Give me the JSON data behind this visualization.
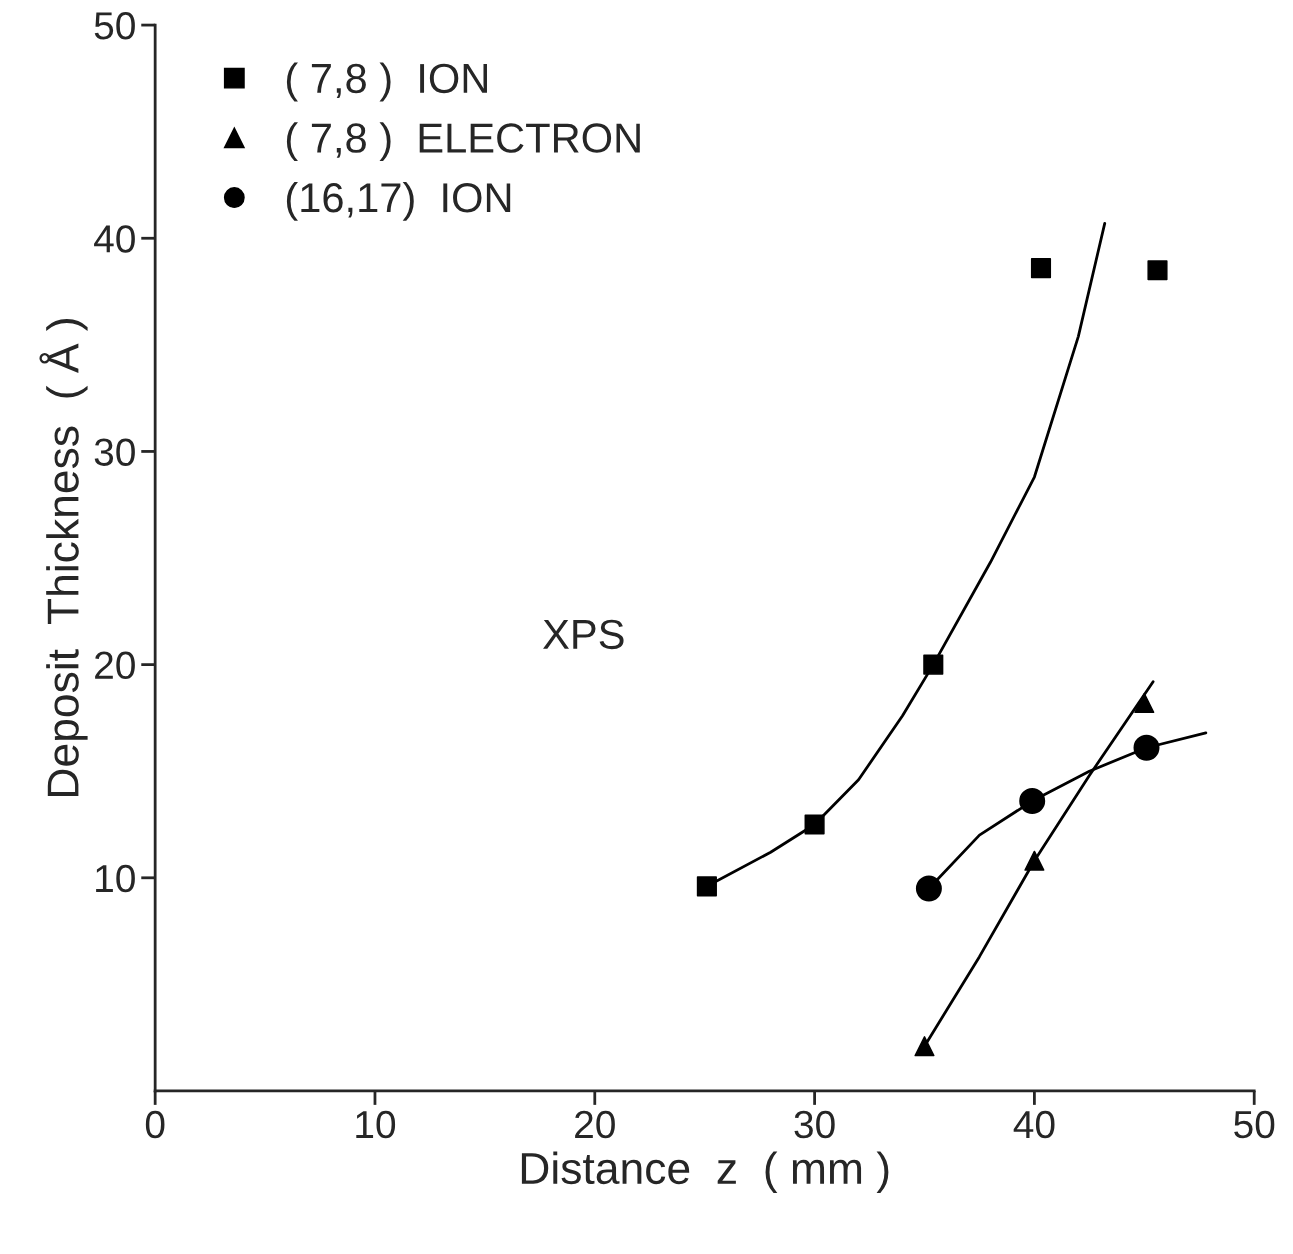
{
  "chart_data": {
    "type": "scatter",
    "xlabel": "Distance  z  ( mm )",
    "ylabel": "Deposit  Thickness  ( Å )",
    "xlim": [
      0,
      50
    ],
    "ylim": [
      0,
      50
    ],
    "xticks": [
      0,
      10,
      20,
      30,
      40,
      50
    ],
    "yticks": [
      10,
      20,
      30,
      40,
      50
    ],
    "legend": "top left",
    "annotations": [
      "XPS"
    ],
    "series": [
      {
        "name": "( 7,8 )  ION",
        "marker": "square",
        "color": "#000000",
        "x": [
          25.1,
          30.0,
          35.4,
          40.3,
          45.6
        ],
        "values": [
          9.6,
          12.5,
          20.0,
          38.6,
          38.5
        ]
      },
      {
        "name": "( 7,8 )  ELECTRON",
        "marker": "triangle",
        "color": "#000000",
        "x": [
          35.0,
          40.0,
          45.0
        ],
        "values": [
          2.1,
          10.8,
          18.2
        ]
      },
      {
        "name": "(16,17)  ION",
        "marker": "circle",
        "color": "#000000",
        "x": [
          35.2,
          39.9,
          45.1
        ],
        "values": [
          9.5,
          13.6,
          16.1
        ]
      },
      {
        "type": "line",
        "marker": "none",
        "line_style": "solid",
        "color": "#000000",
        "x": [
          25.1,
          28,
          30,
          32,
          34,
          35.4,
          38,
          40,
          42,
          43.2
        ],
        "values": [
          9.6,
          11.2,
          12.5,
          14.6,
          17.6,
          20.0,
          24.8,
          28.8,
          35.4,
          40.7
        ]
      },
      {
        "type": "line",
        "marker": "none",
        "line_style": "solid",
        "color": "#000000",
        "x": [
          35.0,
          37.5,
          40.0,
          42.5,
          45.4
        ],
        "values": [
          2.1,
          6.3,
          10.8,
          14.8,
          19.2
        ]
      },
      {
        "type": "line",
        "marker": "none",
        "line_style": "solid",
        "color": "#000000",
        "x": [
          35.2,
          37.5,
          39.9,
          42.5,
          45.1,
          47.8
        ],
        "values": [
          9.5,
          12.0,
          13.6,
          15.0,
          16.1,
          16.8
        ]
      }
    ]
  }
}
